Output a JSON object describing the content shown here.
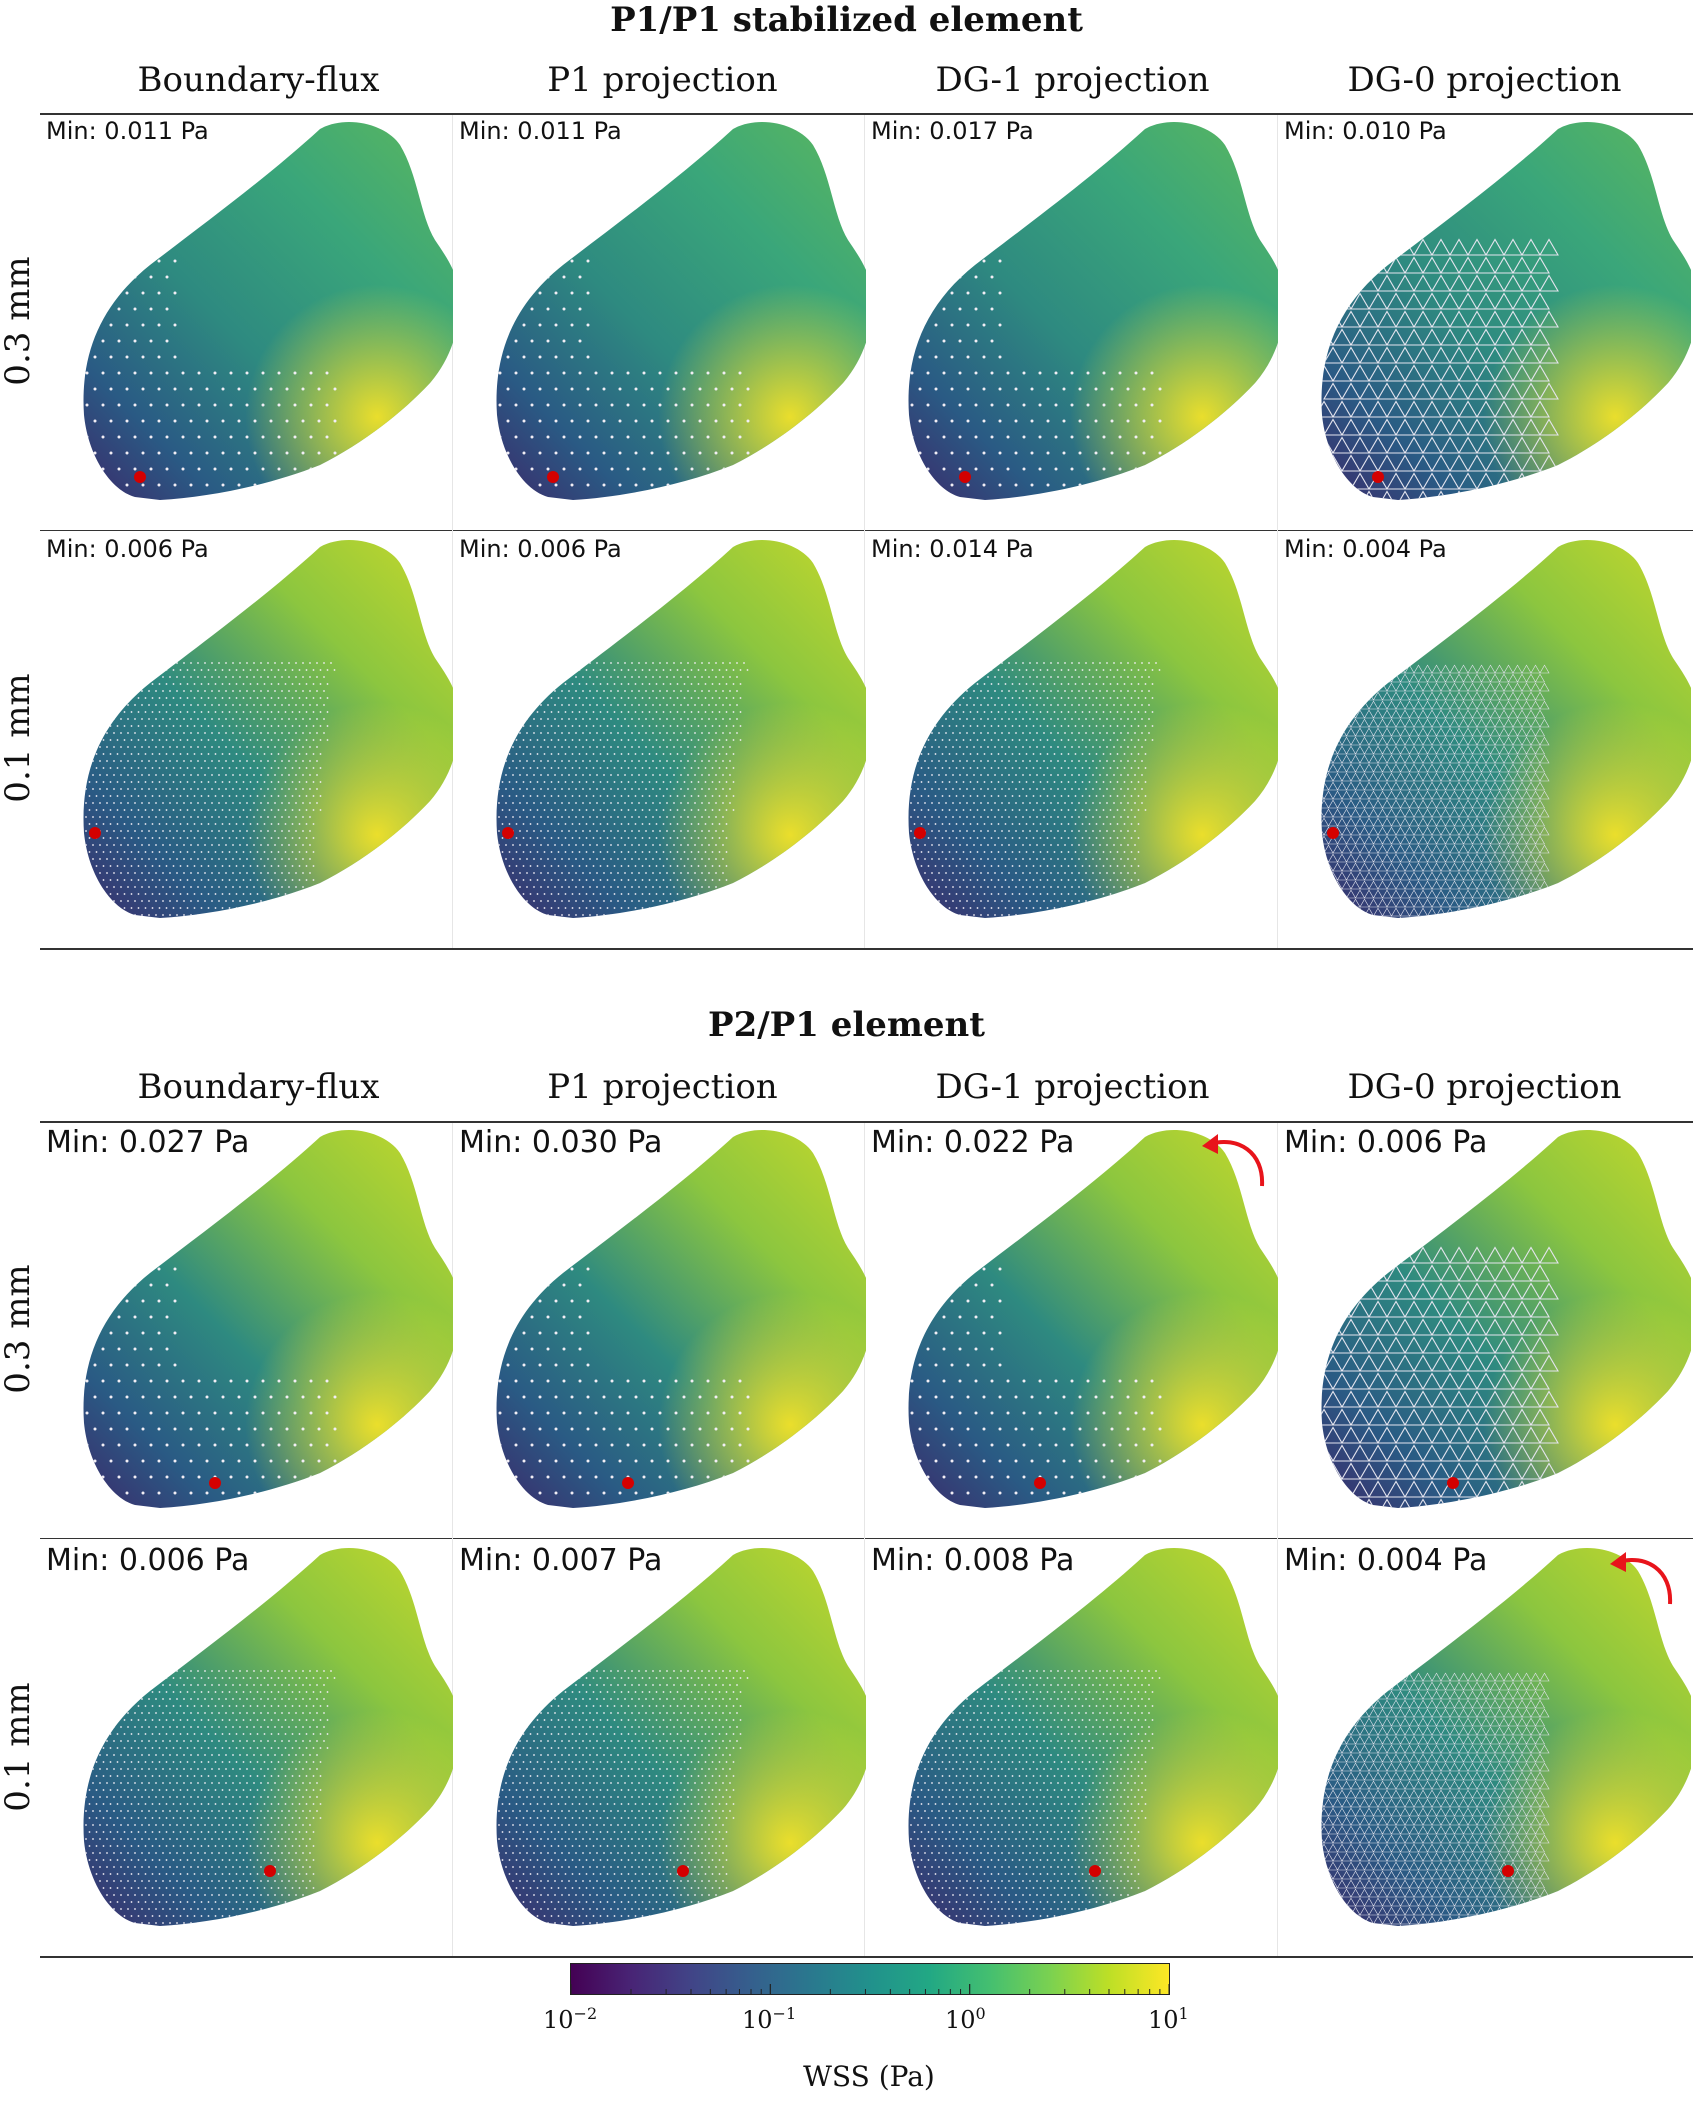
{
  "sections": [
    {
      "title": "P1/P1 stabilized element",
      "columns": [
        "Boundary-flux",
        "P1 projection",
        "DG-1 projection",
        "DG-0 projection"
      ],
      "rows": [
        {
          "label": "0.3 mm",
          "mins": [
            "Min: 0.011 Pa",
            "Min: 0.011 Pa",
            "Min: 0.017 Pa",
            "Min: 0.010 Pa"
          ]
        },
        {
          "label": "0.1 mm",
          "mins": [
            "Min: 0.006 Pa",
            "Min: 0.006 Pa",
            "Min: 0.014 Pa",
            "Min: 0.004 Pa"
          ]
        }
      ]
    },
    {
      "title": "P2/P1 element",
      "columns": [
        "Boundary-flux",
        "P1 projection",
        "DG-1 projection",
        "DG-0 projection"
      ],
      "rows": [
        {
          "label": "0.3 mm",
          "mins": [
            "Min: 0.027 Pa",
            "Min: 0.030 Pa",
            "Min: 0.022 Pa",
            "Min: 0.006 Pa"
          ]
        },
        {
          "label": "0.1 mm",
          "mins": [
            "Min: 0.006 Pa",
            "Min: 0.007 Pa",
            "Min: 0.008 Pa",
            "Min: 0.004 Pa"
          ]
        }
      ]
    }
  ],
  "colorbar": {
    "label": "WSS (Pa)",
    "scale": "log",
    "range": [
      0.01,
      10
    ],
    "colormap": "viridis",
    "ticks": [
      {
        "base": "10",
        "exp": "−2"
      },
      {
        "base": "10",
        "exp": "−1"
      },
      {
        "base": "10",
        "exp": "0"
      },
      {
        "base": "10",
        "exp": "1"
      }
    ]
  },
  "colors": {
    "viridis_low": "#440154",
    "viridis_mid": "#21918c",
    "viridis_high": "#fde725",
    "marker": "#d40000",
    "annotation_arrow": "#e8141b"
  }
}
